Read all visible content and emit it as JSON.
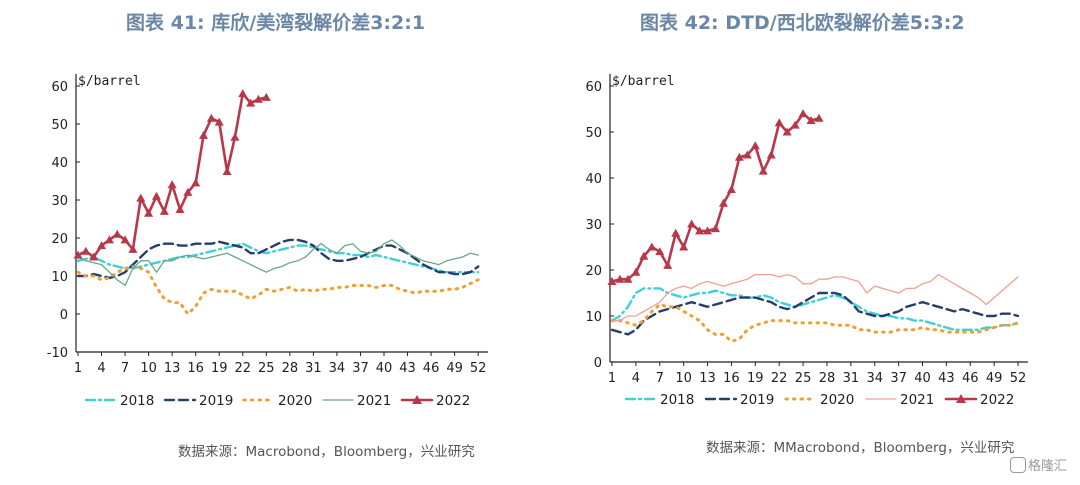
{
  "titles": {
    "left": "图表 41: 库欣/美湾裂解价差3:2:1",
    "right": "图表 42: DTD/西北欧裂解价差5:3:2"
  },
  "sources": {
    "left": "数据来源：Macrobond，Bloomberg，兴业研究",
    "right": "数据来源：MMacrobond，Bloomberg，兴业研究"
  },
  "watermark": "格隆汇",
  "series_style": [
    {
      "name": "2018",
      "color": "#3fcfd6",
      "dash": "9 4 2 4",
      "width": 2.4,
      "marker": false
    },
    {
      "name": "2019",
      "color": "#263d6e",
      "dash": "9 5",
      "width": 2.4,
      "marker": false
    },
    {
      "name": "2020",
      "color": "#f0a030",
      "dash": "1.5 6",
      "width": 3,
      "marker": false
    },
    {
      "name": "2021L",
      "color": "#66a888",
      "dash": "",
      "width": 1.3,
      "marker": false
    },
    {
      "name": "2021R",
      "color": "#f0a090",
      "dash": "",
      "width": 1.3,
      "marker": false
    },
    {
      "name": "2022",
      "color": "#b8384a",
      "dash": "",
      "width": 2.6,
      "marker": true
    }
  ],
  "chart_data": [
    {
      "type": "line",
      "title": "图表 41: 库欣/美湾裂解价差3:2:1",
      "ylabel": "$/barrel",
      "ylim": [
        -10,
        60
      ],
      "yticks": [
        -10,
        0,
        10,
        20,
        30,
        40,
        50,
        60
      ],
      "xlim": [
        1,
        53
      ],
      "xticks": [
        1,
        4,
        7,
        10,
        13,
        16,
        19,
        22,
        25,
        28,
        31,
        34,
        37,
        40,
        43,
        46,
        49,
        52
      ],
      "legend_position": "bottom",
      "series": [
        {
          "name": "2018",
          "x": [
            1,
            2,
            3,
            4,
            5,
            6,
            7,
            8,
            9,
            10,
            11,
            12,
            13,
            14,
            15,
            16,
            17,
            18,
            19,
            20,
            21,
            22,
            23,
            24,
            25,
            26,
            27,
            28,
            29,
            30,
            31,
            32,
            33,
            34,
            35,
            36,
            37,
            38,
            39,
            40,
            41,
            42,
            43,
            44,
            45,
            46,
            47,
            48,
            49,
            50,
            51,
            52
          ],
          "values": [
            14,
            14.5,
            15,
            14,
            13,
            12.5,
            12,
            12,
            12.5,
            13,
            13.5,
            14,
            14.5,
            15,
            15,
            15.5,
            16,
            16.5,
            17,
            17.5,
            18,
            18.5,
            17.5,
            16.5,
            16,
            16.5,
            17,
            17.5,
            18,
            18,
            17.5,
            17,
            16.5,
            16,
            16,
            15.5,
            15.5,
            15,
            15.5,
            15,
            14.5,
            14,
            13.5,
            13,
            12.5,
            12,
            11.5,
            11,
            11,
            11,
            11,
            11
          ]
        },
        {
          "name": "2019",
          "x": [
            1,
            2,
            3,
            4,
            5,
            6,
            7,
            8,
            9,
            10,
            11,
            12,
            13,
            14,
            15,
            16,
            17,
            18,
            19,
            20,
            21,
            22,
            23,
            24,
            25,
            26,
            27,
            28,
            29,
            30,
            31,
            32,
            33,
            34,
            35,
            36,
            37,
            38,
            39,
            40,
            41,
            42,
            43,
            44,
            45,
            46,
            47,
            48,
            49,
            50,
            51,
            52
          ],
          "values": [
            10,
            10,
            10.5,
            10,
            9.5,
            10,
            11,
            13,
            15,
            17,
            18,
            18.5,
            18.5,
            18,
            18,
            18.5,
            18.5,
            18.5,
            19,
            18.5,
            18,
            17.5,
            16,
            16,
            17,
            18,
            19,
            19.5,
            19.5,
            19,
            18,
            16,
            14.5,
            14,
            14,
            14.5,
            15,
            16,
            17,
            18,
            18,
            17,
            16,
            14.5,
            13,
            12,
            11,
            11,
            10.5,
            10.5,
            11,
            12.5
          ]
        },
        {
          "name": "2020",
          "x": [
            1,
            2,
            3,
            4,
            5,
            6,
            7,
            8,
            9,
            10,
            11,
            12,
            13,
            14,
            15,
            16,
            17,
            18,
            19,
            20,
            21,
            22,
            23,
            24,
            25,
            26,
            27,
            28,
            29,
            30,
            31,
            32,
            33,
            34,
            35,
            36,
            37,
            38,
            39,
            40,
            41,
            42,
            43,
            44,
            45,
            46,
            47,
            48,
            49,
            50,
            51,
            52
          ],
          "values": [
            11,
            10,
            10,
            9,
            9.5,
            11,
            12,
            12.5,
            12,
            11,
            7,
            4,
            3,
            3,
            0,
            2,
            5.5,
            6.5,
            6,
            6,
            6,
            5,
            4,
            5,
            6.5,
            6,
            6.5,
            7,
            6,
            6.5,
            6,
            6.5,
            6.5,
            7,
            7,
            7.5,
            7.5,
            7.5,
            7,
            7.5,
            7.5,
            6.5,
            6,
            5.5,
            6,
            6,
            6,
            6.5,
            6.5,
            7,
            8,
            9
          ]
        },
        {
          "name": "2021",
          "x": [
            1,
            2,
            3,
            4,
            5,
            6,
            7,
            8,
            9,
            10,
            11,
            12,
            13,
            14,
            15,
            16,
            17,
            18,
            19,
            20,
            21,
            22,
            23,
            24,
            25,
            26,
            27,
            28,
            29,
            30,
            31,
            32,
            33,
            34,
            35,
            36,
            37,
            38,
            39,
            40,
            41,
            42,
            43,
            44,
            45,
            46,
            47,
            48,
            49,
            50,
            51,
            52
          ],
          "values": [
            15,
            14,
            13.5,
            13,
            11,
            9,
            7.5,
            12,
            14,
            14,
            11,
            14,
            14,
            15,
            15.5,
            15,
            14.5,
            15,
            15.5,
            16,
            15,
            14,
            13,
            12,
            11,
            12,
            12.5,
            13.5,
            14,
            15,
            17,
            18.5,
            17,
            16,
            18,
            18.5,
            16.5,
            16,
            16.5,
            18.5,
            19.5,
            18,
            16,
            15,
            14,
            13.5,
            13,
            14,
            14.5,
            15,
            16,
            15.5
          ]
        },
        {
          "name": "2022",
          "x": [
            1,
            2,
            3,
            4,
            5,
            6,
            7,
            8,
            9,
            10,
            11,
            12,
            13,
            14,
            15,
            16,
            17,
            18,
            19,
            20,
            21,
            22,
            23,
            24,
            25
          ],
          "values": [
            15.5,
            16.5,
            15,
            18,
            19.5,
            21,
            19.5,
            17,
            30.5,
            26.5,
            31,
            27,
            34,
            27.5,
            32,
            34.5,
            47,
            51.5,
            50.5,
            37.5,
            46.5,
            58,
            55.5,
            56.5,
            57
          ]
        }
      ]
    },
    {
      "type": "line",
      "title": "图表 42: DTD/西北欧裂解价差5:3:2",
      "ylabel": "$/barrel",
      "ylim": [
        0,
        60
      ],
      "yticks": [
        0,
        10,
        20,
        30,
        40,
        50,
        60
      ],
      "xlim": [
        1,
        53
      ],
      "xticks": [
        1,
        4,
        7,
        10,
        13,
        16,
        19,
        22,
        25,
        28,
        31,
        34,
        37,
        40,
        43,
        46,
        49,
        52
      ],
      "legend_position": "bottom",
      "series": [
        {
          "name": "2018",
          "x": [
            1,
            2,
            3,
            4,
            5,
            6,
            7,
            8,
            9,
            10,
            11,
            12,
            13,
            14,
            15,
            16,
            17,
            18,
            19,
            20,
            21,
            22,
            23,
            24,
            25,
            26,
            27,
            28,
            29,
            30,
            31,
            32,
            33,
            34,
            35,
            36,
            37,
            38,
            39,
            40,
            41,
            42,
            43,
            44,
            45,
            46,
            47,
            48,
            49,
            50,
            51,
            52
          ],
          "values": [
            9,
            10,
            12,
            15,
            16,
            16,
            16,
            15,
            14.5,
            14,
            14.5,
            15,
            15,
            15.5,
            15,
            14.5,
            14.5,
            14,
            14,
            14.5,
            14,
            13,
            12.5,
            12,
            12.5,
            13,
            13.5,
            14,
            14.5,
            14,
            13,
            12,
            11,
            10.5,
            10,
            10,
            9.5,
            9.5,
            9,
            9,
            8.5,
            8,
            7.5,
            7,
            7,
            7,
            7,
            7.5,
            7.5,
            8,
            8,
            8.5
          ]
        },
        {
          "name": "2019",
          "x": [
            1,
            2,
            3,
            4,
            5,
            6,
            7,
            8,
            9,
            10,
            11,
            12,
            13,
            14,
            15,
            16,
            17,
            18,
            19,
            20,
            21,
            22,
            23,
            24,
            25,
            26,
            27,
            28,
            29,
            30,
            31,
            32,
            33,
            34,
            35,
            36,
            37,
            38,
            39,
            40,
            41,
            42,
            43,
            44,
            45,
            46,
            47,
            48,
            49,
            50,
            51,
            52
          ],
          "values": [
            7,
            6.5,
            6,
            7,
            9,
            10,
            11,
            11.5,
            12,
            12.5,
            13,
            12.5,
            12,
            12.5,
            13,
            13.5,
            14,
            14,
            14,
            13.5,
            13,
            12,
            11.5,
            12,
            13,
            14,
            15,
            15,
            15,
            14.5,
            13,
            11,
            10.5,
            10,
            10,
            10.5,
            11,
            12,
            12.5,
            13,
            12.5,
            12,
            11.5,
            11,
            11.5,
            11,
            10.5,
            10,
            10,
            10.5,
            10.5,
            10
          ]
        },
        {
          "name": "2020",
          "x": [
            1,
            2,
            3,
            4,
            5,
            6,
            7,
            8,
            9,
            10,
            11,
            12,
            13,
            14,
            15,
            16,
            17,
            18,
            19,
            20,
            21,
            22,
            23,
            24,
            25,
            26,
            27,
            28,
            29,
            30,
            31,
            32,
            33,
            34,
            35,
            36,
            37,
            38,
            39,
            40,
            41,
            42,
            43,
            44,
            45,
            46,
            47,
            48,
            49,
            50,
            51,
            52
          ],
          "values": [
            9,
            9,
            8.5,
            8,
            9,
            11,
            12.5,
            12,
            12,
            11,
            10,
            9,
            7,
            6,
            6,
            4.5,
            5,
            7,
            8,
            8.5,
            9,
            9,
            9,
            8.5,
            8.5,
            8.5,
            8.5,
            8.5,
            8,
            8,
            8,
            7,
            7,
            6.5,
            6.5,
            6.5,
            7,
            7,
            7,
            7.5,
            7,
            7,
            6.5,
            6.5,
            6.5,
            6.5,
            6.5,
            7,
            7.5,
            8,
            8,
            8.5
          ]
        },
        {
          "name": "2021",
          "x": [
            1,
            2,
            3,
            4,
            5,
            6,
            7,
            8,
            9,
            10,
            11,
            12,
            13,
            14,
            15,
            16,
            17,
            18,
            19,
            20,
            21,
            22,
            23,
            24,
            25,
            26,
            27,
            28,
            29,
            30,
            31,
            32,
            33,
            34,
            35,
            36,
            37,
            38,
            39,
            40,
            41,
            42,
            43,
            44,
            45,
            46,
            47,
            48,
            49,
            50,
            51,
            52
          ],
          "values": [
            9,
            9,
            10,
            10,
            11,
            12,
            13,
            15,
            16,
            16.5,
            16,
            17,
            17.5,
            17,
            16.5,
            17,
            17.5,
            18,
            19,
            19,
            19,
            18.5,
            19,
            18.5,
            17,
            17,
            18,
            18,
            18.5,
            18.5,
            18,
            17.5,
            15,
            16.5,
            16,
            15.5,
            15,
            16,
            16,
            17,
            17.5,
            19,
            18,
            17,
            16,
            15,
            14,
            12.5,
            14,
            15.5,
            17,
            18.5
          ]
        },
        {
          "name": "2022",
          "x": [
            1,
            2,
            3,
            4,
            5,
            6,
            7,
            8,
            9,
            10,
            11,
            12,
            13,
            14,
            15,
            16,
            17,
            18,
            19,
            20,
            21,
            22,
            23,
            24,
            25,
            26,
            27
          ],
          "values": [
            17.5,
            18,
            18,
            19.5,
            23,
            25,
            24,
            21,
            28,
            25,
            30,
            28.5,
            28.5,
            29,
            34.5,
            37.5,
            44.5,
            45,
            47,
            41.5,
            45,
            52,
            50,
            51.5,
            54,
            52.5,
            53
          ]
        }
      ]
    }
  ]
}
